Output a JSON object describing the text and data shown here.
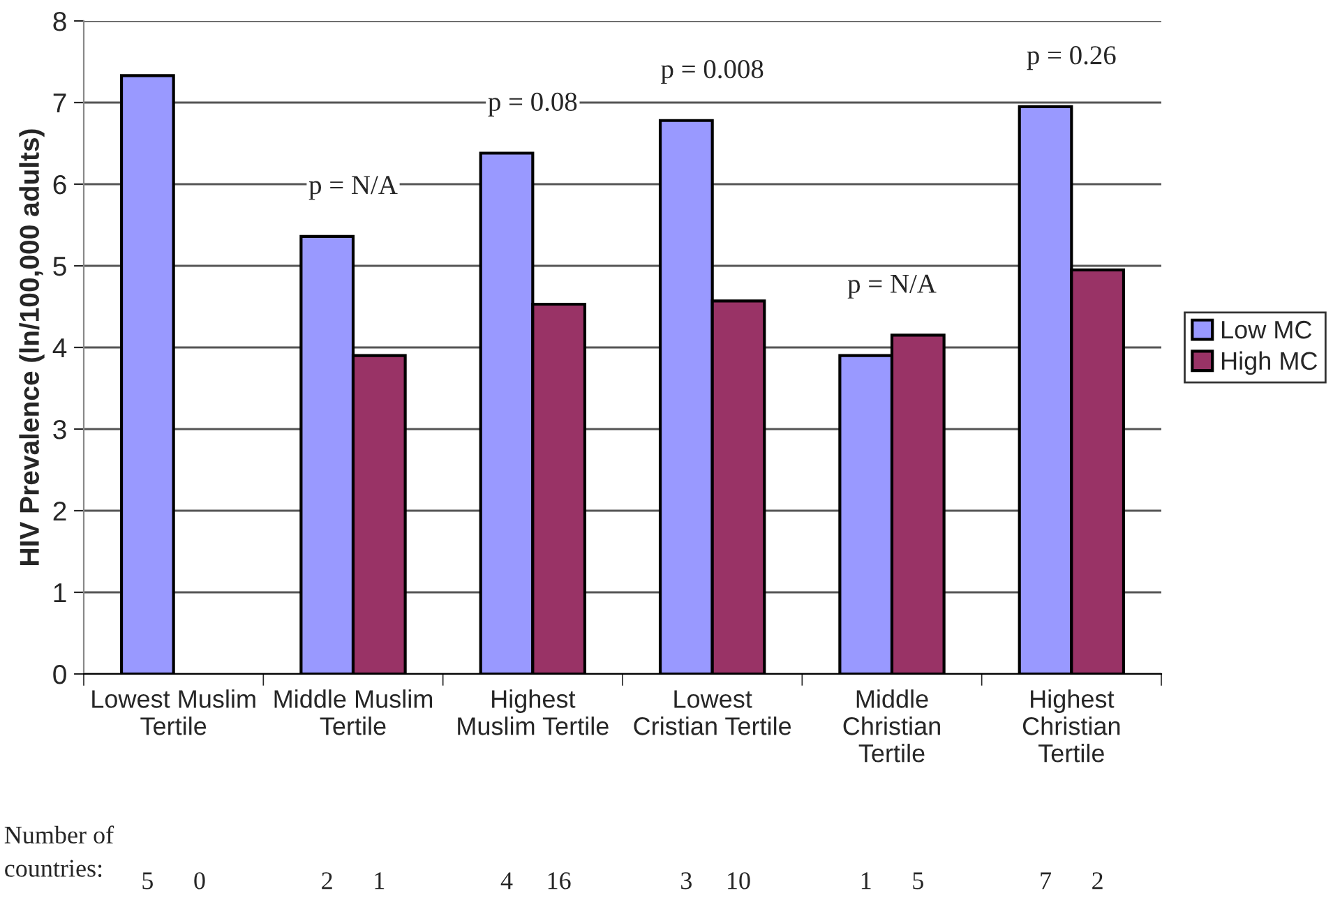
{
  "chart_data": {
    "type": "bar",
    "ylabel": "HIV Prevalence (ln/100,000 adults)",
    "categories": [
      "Lowest Muslim\nTertile",
      "Middle Muslim\nTertile",
      "Highest\nMuslim Tertile",
      "Lowest\nCristian Tertile",
      "Middle\nChristian\nTertile",
      "Highest\nChristian\nTertile"
    ],
    "series": [
      {
        "name": "Low MC",
        "color": "#9999ff",
        "values": [
          7.33,
          5.36,
          6.38,
          6.78,
          3.9,
          6.95
        ]
      },
      {
        "name": "High MC",
        "color": "#993366",
        "values": [
          null,
          3.9,
          4.53,
          4.57,
          4.15,
          4.95
        ]
      }
    ],
    "ylim": [
      0,
      8
    ],
    "yticks": [
      0,
      1,
      2,
      3,
      4,
      5,
      6,
      7,
      8
    ],
    "grid": "y",
    "legend": "right",
    "annotations": [
      "p = N/A",
      "p = 0.08",
      "p = 0.008",
      "p = N/A",
      "p = 0.26",
      "Number of\ncountries:",
      "5",
      "0",
      "2",
      "1",
      "4",
      "16",
      "3",
      "10",
      "1",
      "5",
      "7",
      "2"
    ]
  }
}
